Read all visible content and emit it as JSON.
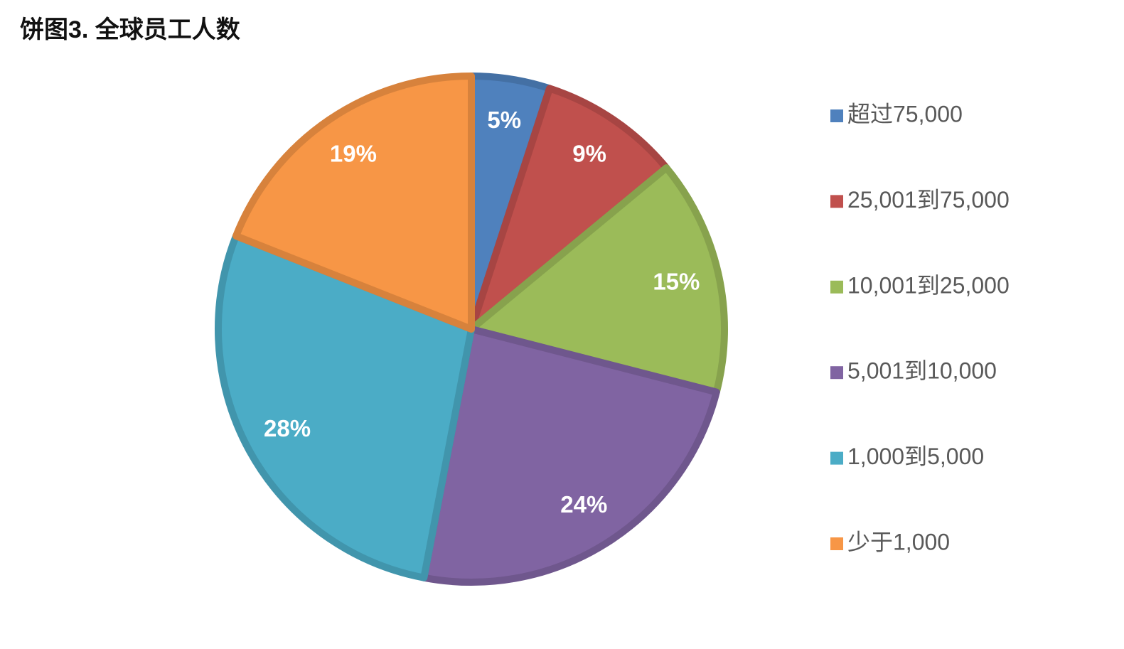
{
  "chart_data": {
    "type": "pie",
    "title": "饼图3. 全球员工人数",
    "categories": [
      "超过75,000",
      "25,001到75,000",
      "10,001到25,000",
      "5,001到10,000",
      "1,000到5,000",
      "少于1,000"
    ],
    "values": [
      5,
      9,
      15,
      24,
      28,
      19
    ],
    "value_labels": [
      "5%",
      "9%",
      "15%",
      "24%",
      "28%",
      "19%"
    ],
    "colors": [
      "#4f81bd",
      "#c0504d",
      "#9bbb59",
      "#8064a2",
      "#4bacc6",
      "#f79646"
    ],
    "legend": "right"
  }
}
